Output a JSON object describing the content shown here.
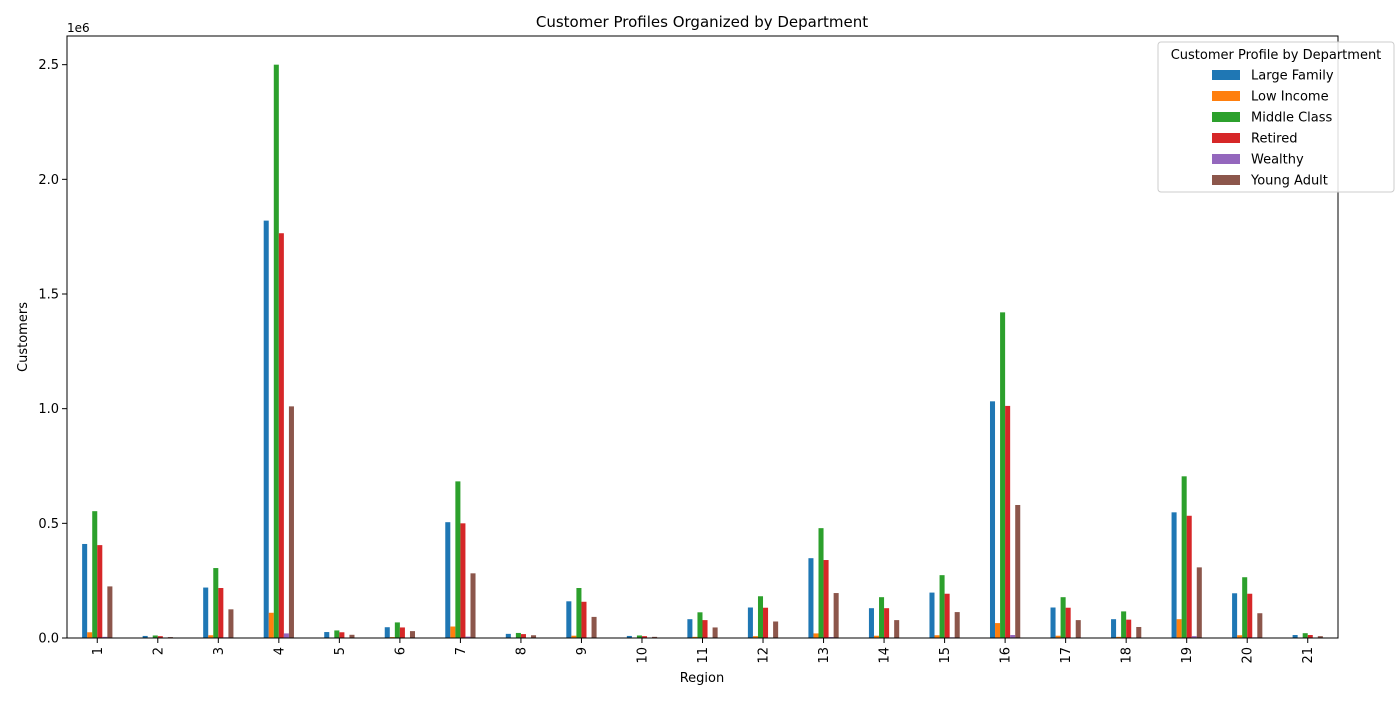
{
  "chart_data": {
    "type": "bar",
    "title": "Customer Profiles Organized by Department",
    "xlabel": "Region",
    "ylabel": "Customers",
    "y_offset_label": "1e6",
    "ylim": [
      0,
      2625000
    ],
    "yticks": [
      {
        "value": 0,
        "label": "0.0"
      },
      {
        "value": 500000,
        "label": "0.5"
      },
      {
        "value": 1000000,
        "label": "1.0"
      },
      {
        "value": 1500000,
        "label": "1.5"
      },
      {
        "value": 2000000,
        "label": "2.0"
      },
      {
        "value": 2500000,
        "label": "2.5"
      }
    ],
    "grid": false,
    "legend_title": "Customer Profile by Department",
    "legend_position": "top-right",
    "categories": [
      "1",
      "2",
      "3",
      "4",
      "5",
      "6",
      "7",
      "8",
      "9",
      "10",
      "11",
      "12",
      "13",
      "14",
      "15",
      "16",
      "17",
      "18",
      "19",
      "20",
      "21"
    ],
    "series": [
      {
        "name": "Large Family",
        "color": "#1f77b4",
        "values": [
          410000,
          9000,
          220000,
          1820000,
          26000,
          47000,
          505000,
          18000,
          160000,
          9000,
          82000,
          133000,
          348000,
          130000,
          198000,
          1032000,
          133000,
          82000,
          548000,
          195000,
          13000
        ]
      },
      {
        "name": "Low Income",
        "color": "#ff7f0e",
        "values": [
          25000,
          1000,
          12000,
          110000,
          2000,
          4000,
          50000,
          1000,
          10000,
          1000,
          5000,
          8000,
          20000,
          10000,
          12000,
          65000,
          10000,
          5000,
          82000,
          12000,
          1000
        ]
      },
      {
        "name": "Middle Class",
        "color": "#2ca02c",
        "values": [
          553000,
          11000,
          305000,
          2500000,
          33000,
          68000,
          683000,
          22000,
          218000,
          11000,
          112000,
          182000,
          479000,
          178000,
          274000,
          1420000,
          178000,
          116000,
          705000,
          265000,
          21000
        ]
      },
      {
        "name": "Retired",
        "color": "#d62728",
        "values": [
          405000,
          8000,
          218000,
          1765000,
          25000,
          46000,
          500000,
          17000,
          158000,
          8000,
          78000,
          132000,
          340000,
          130000,
          193000,
          1012000,
          132000,
          80000,
          533000,
          193000,
          13000
        ]
      },
      {
        "name": "Wealthy",
        "color": "#9467bd",
        "values": [
          5000,
          500,
          3000,
          20000,
          500,
          1000,
          6000,
          500,
          2000,
          500,
          1000,
          2000,
          4000,
          2000,
          3000,
          13000,
          2000,
          1000,
          8000,
          3000,
          500
        ]
      },
      {
        "name": "Young Adult",
        "color": "#8c564b",
        "values": [
          225000,
          4000,
          125000,
          1010000,
          14000,
          30000,
          282000,
          12000,
          92000,
          5000,
          46000,
          72000,
          196000,
          78000,
          113000,
          580000,
          78000,
          48000,
          308000,
          108000,
          8000
        ]
      }
    ]
  }
}
